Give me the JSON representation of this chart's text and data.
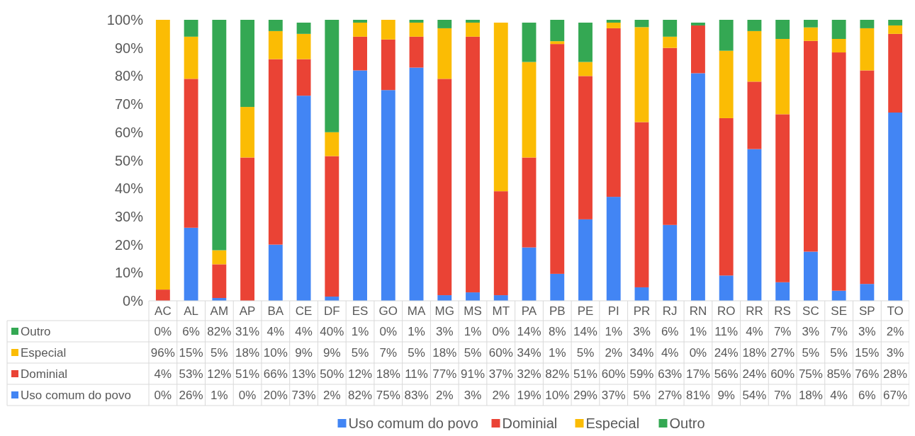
{
  "chart_data": {
    "type": "bar",
    "stacked": true,
    "legend": "bottom",
    "grid": false,
    "categories": [
      "AC",
      "AL",
      "AM",
      "AP",
      "BA",
      "CE",
      "DF",
      "ES",
      "GO",
      "MA",
      "MG",
      "MS",
      "MT",
      "PA",
      "PB",
      "PE",
      "PI",
      "PR",
      "RJ",
      "RN",
      "RO",
      "RR",
      "RS",
      "SC",
      "SE",
      "SP",
      "TO"
    ],
    "ylim": [
      0,
      100
    ],
    "yticks": [
      {
        "value": 0,
        "label": "0%"
      },
      {
        "value": 10,
        "label": "10%"
      },
      {
        "value": 20,
        "label": "20%"
      },
      {
        "value": 30,
        "label": "30%"
      },
      {
        "value": 40,
        "label": "40%"
      },
      {
        "value": 50,
        "label": "50%"
      },
      {
        "value": 60,
        "label": "60%"
      },
      {
        "value": 70,
        "label": "70%"
      },
      {
        "value": 80,
        "label": "80%"
      },
      {
        "value": 90,
        "label": "90%"
      },
      {
        "value": 100,
        "label": "100%"
      }
    ],
    "series": [
      {
        "name": "Uso comum do povo",
        "color": "#4285f4",
        "values": [
          0,
          26,
          1,
          0,
          20,
          73,
          1.5,
          82,
          75,
          83,
          2,
          3,
          2,
          19,
          9.6,
          29,
          37,
          4.8,
          27,
          81,
          9,
          54,
          6.6,
          17.5,
          3.6,
          6,
          67
        ],
        "value_labels": [
          "0%",
          "26%",
          "1%",
          "0%",
          "20%",
          "73%",
          "2%",
          "82%",
          "75%",
          "83%",
          "2%",
          "3%",
          "2%",
          "19%",
          "10%",
          "29%",
          "37%",
          "5%",
          "27%",
          "81%",
          "9%",
          "54%",
          "7%",
          "18%",
          "4%",
          "6%",
          "67%"
        ]
      },
      {
        "name": "Dominial",
        "color": "#ea4335",
        "values": [
          4,
          53,
          12,
          51,
          66,
          13,
          50,
          12,
          18,
          11,
          77,
          91,
          37,
          32,
          81.8,
          51,
          60,
          58.8,
          63,
          17,
          56,
          24,
          59.8,
          75,
          84.8,
          76,
          28
        ],
        "value_labels": [
          "4%",
          "53%",
          "12%",
          "51%",
          "66%",
          "13%",
          "50%",
          "12%",
          "18%",
          "11%",
          "77%",
          "91%",
          "37%",
          "32%",
          "82%",
          "51%",
          "60%",
          "59%",
          "63%",
          "17%",
          "56%",
          "24%",
          "60%",
          "75%",
          "85%",
          "76%",
          "28%"
        ]
      },
      {
        "name": "Especial",
        "color": "#fbbc04",
        "values": [
          96,
          15,
          5,
          18,
          10,
          9,
          8.5,
          5,
          7,
          5,
          18,
          5,
          60,
          34,
          1,
          5,
          2,
          33.8,
          4,
          0,
          24,
          18,
          26.8,
          4.8,
          4.8,
          15,
          3
        ],
        "value_labels": [
          "96%",
          "15%",
          "5%",
          "18%",
          "10%",
          "9%",
          "9%",
          "5%",
          "7%",
          "5%",
          "18%",
          "5%",
          "60%",
          "34%",
          "1%",
          "5%",
          "2%",
          "34%",
          "4%",
          "0%",
          "24%",
          "18%",
          "27%",
          "5%",
          "5%",
          "15%",
          "3%"
        ]
      },
      {
        "name": "Outro",
        "color": "#34a853",
        "values": [
          0,
          6,
          82,
          31,
          4,
          4,
          40,
          1,
          0,
          1,
          3,
          1,
          0,
          14,
          7.6,
          14,
          1,
          2.6,
          6,
          1,
          11,
          4,
          6.8,
          2.7,
          6.8,
          3,
          2
        ],
        "value_labels": [
          "0%",
          "6%",
          "82%",
          "31%",
          "4%",
          "4%",
          "40%",
          "1%",
          "0%",
          "1%",
          "3%",
          "1%",
          "0%",
          "14%",
          "8%",
          "14%",
          "1%",
          "3%",
          "6%",
          "1%",
          "11%",
          "4%",
          "7%",
          "3%",
          "7%",
          "3%",
          "2%"
        ]
      }
    ]
  }
}
